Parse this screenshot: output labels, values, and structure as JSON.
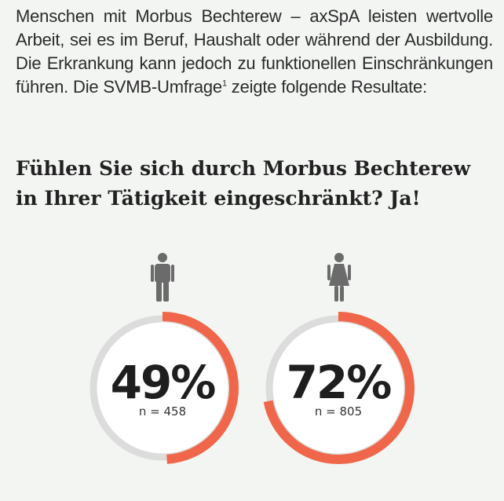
{
  "intro": {
    "text_before_footnote": "Menschen mit Morbus Bechterew – axSpA leisten wertvolle Arbeit, sei es im Beruf, Haushalt oder während der Ausbildung. Die Erkrankung kann jedoch zu funktionellen Einschränkungen führen. Die SVMB-Umfrage",
    "footnote": "1",
    "text_after_footnote": " zeigte folgende Resultate:"
  },
  "question": "Fühlen Sie sich durch Morbus Bechterew in Ihrer Tätigkeit eingeschränkt? Ja!",
  "stats": [
    {
      "group_icon": "male-person-icon",
      "percent": 49,
      "percent_label": "49%",
      "sample": "n = 458"
    },
    {
      "group_icon": "female-person-icon",
      "percent": 72,
      "percent_label": "72%",
      "sample": "n = 805"
    }
  ],
  "colors": {
    "accent": "#f0664a",
    "track": "#dcdcdc",
    "icon": "#6b6b6b",
    "background": "#f3f5f3",
    "circle_fill": "#ffffff"
  }
}
